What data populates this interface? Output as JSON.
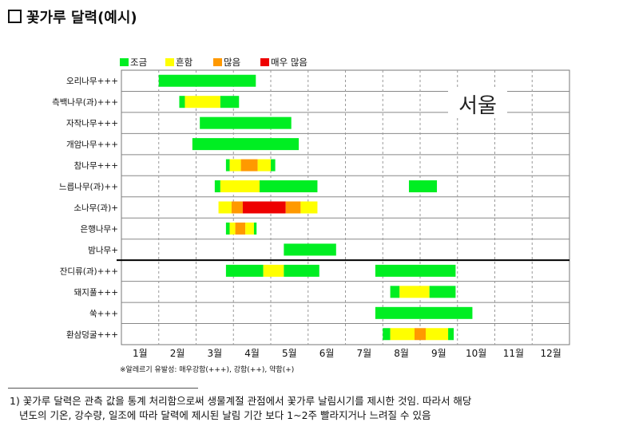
{
  "page": {
    "title": "꽃가루 달력(예시)",
    "footnote_line1": "1) 꽃가루 달력은 관측 값을 통계 처리함으로써 생물계절 관점에서 꽃가루 날림시기를 제시한 것임. 따라서 해당",
    "footnote_line2": "년도의 기온, 강수량, 일조에 따라 달력에 제시된 날림 기간 보다 1~2주 빨라지거나 느려질 수 있음"
  },
  "chart_data": {
    "type": "gantt",
    "region_label": "서울",
    "legend": [
      {
        "key": "low",
        "label": "조금",
        "color": "#00ee22"
      },
      {
        "key": "common",
        "label": "흔함",
        "color": "#ffff00"
      },
      {
        "key": "many",
        "label": "많음",
        "color": "#ff9900"
      },
      {
        "key": "very_many",
        "label": "매우 많음",
        "color": "#ee0000"
      }
    ],
    "months": [
      "1월",
      "2월",
      "3월",
      "4월",
      "5월",
      "6월",
      "7월",
      "8월",
      "9월",
      "10월",
      "11월",
      "12월"
    ],
    "footnote_allergy": "※알레르기 유발성: 매우강함(+++), 강함(++), 약함(+)",
    "divider_after_row": 9,
    "rows": [
      {
        "name": "오리나무+++",
        "segments": [
          {
            "start": 2.0,
            "end": 4.6,
            "level": "low"
          }
        ]
      },
      {
        "name": "측백나무(과)+++",
        "segments": [
          {
            "start": 2.55,
            "end": 2.7,
            "level": "low"
          },
          {
            "start": 2.7,
            "end": 3.65,
            "level": "common"
          },
          {
            "start": 3.65,
            "end": 4.15,
            "level": "low"
          }
        ]
      },
      {
        "name": "자작나무+++",
        "segments": [
          {
            "start": 3.1,
            "end": 5.55,
            "level": "low"
          }
        ]
      },
      {
        "name": "개암나무+++",
        "segments": [
          {
            "start": 2.9,
            "end": 5.75,
            "level": "low"
          }
        ]
      },
      {
        "name": "참나무+++",
        "segments": [
          {
            "start": 3.8,
            "end": 3.9,
            "level": "low"
          },
          {
            "start": 3.9,
            "end": 4.2,
            "level": "common"
          },
          {
            "start": 4.2,
            "end": 4.65,
            "level": "many"
          },
          {
            "start": 4.65,
            "end": 5.0,
            "level": "common"
          },
          {
            "start": 5.0,
            "end": 5.12,
            "level": "low"
          }
        ]
      },
      {
        "name": "느릅나무(과)++",
        "segments": [
          {
            "start": 3.5,
            "end": 3.65,
            "level": "low"
          },
          {
            "start": 3.65,
            "end": 4.7,
            "level": "common"
          },
          {
            "start": 4.7,
            "end": 6.25,
            "level": "low"
          },
          {
            "start": 8.7,
            "end": 9.45,
            "level": "low"
          }
        ]
      },
      {
        "name": "소나무(과)+",
        "segments": [
          {
            "start": 3.6,
            "end": 3.95,
            "level": "common"
          },
          {
            "start": 3.95,
            "end": 4.25,
            "level": "many"
          },
          {
            "start": 4.25,
            "end": 5.4,
            "level": "very_many"
          },
          {
            "start": 5.4,
            "end": 5.8,
            "level": "many"
          },
          {
            "start": 5.8,
            "end": 6.25,
            "level": "common"
          }
        ]
      },
      {
        "name": "은행나무+",
        "segments": [
          {
            "start": 3.8,
            "end": 3.9,
            "level": "low"
          },
          {
            "start": 3.9,
            "end": 4.05,
            "level": "common"
          },
          {
            "start": 4.05,
            "end": 4.32,
            "level": "many"
          },
          {
            "start": 4.32,
            "end": 4.55,
            "level": "common"
          },
          {
            "start": 4.55,
            "end": 4.62,
            "level": "low"
          }
        ]
      },
      {
        "name": "밤나무+",
        "segments": [
          {
            "start": 5.35,
            "end": 6.75,
            "level": "low"
          }
        ]
      },
      {
        "name": "잔디류(과)+++",
        "segments": [
          {
            "start": 3.8,
            "end": 4.8,
            "level": "low"
          },
          {
            "start": 4.8,
            "end": 5.35,
            "level": "common"
          },
          {
            "start": 5.35,
            "end": 6.3,
            "level": "low"
          },
          {
            "start": 7.8,
            "end": 9.95,
            "level": "low"
          }
        ]
      },
      {
        "name": "돼지풀+++",
        "segments": [
          {
            "start": 8.2,
            "end": 8.45,
            "level": "low"
          },
          {
            "start": 8.45,
            "end": 9.25,
            "level": "common"
          },
          {
            "start": 9.25,
            "end": 9.95,
            "level": "low"
          }
        ]
      },
      {
        "name": "쑥+++",
        "segments": [
          {
            "start": 7.8,
            "end": 10.4,
            "level": "low"
          }
        ]
      },
      {
        "name": "환삼덩굴+++",
        "segments": [
          {
            "start": 8.0,
            "end": 8.2,
            "level": "low"
          },
          {
            "start": 8.2,
            "end": 8.85,
            "level": "common"
          },
          {
            "start": 8.85,
            "end": 9.15,
            "level": "many"
          },
          {
            "start": 9.15,
            "end": 9.75,
            "level": "common"
          },
          {
            "start": 9.75,
            "end": 9.9,
            "level": "low"
          }
        ]
      }
    ]
  }
}
